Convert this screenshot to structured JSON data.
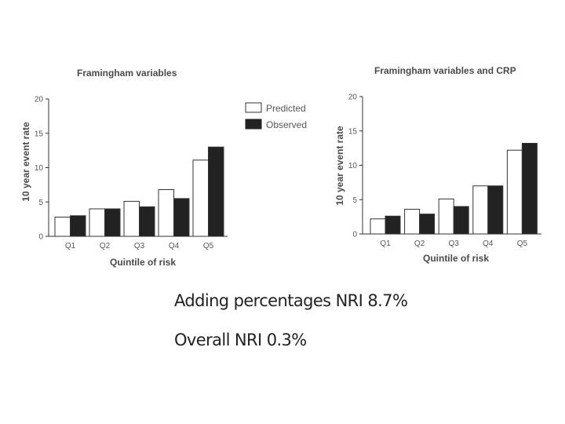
{
  "chart_data": [
    {
      "type": "bar",
      "title": "Framingham variables",
      "xlabel": "Quintile of risk",
      "ylabel": "10 year event rate",
      "categories": [
        "Q1",
        "Q2",
        "Q3",
        "Q4",
        "Q5"
      ],
      "ylim": [
        0,
        20
      ],
      "yticks": [
        0,
        5,
        10,
        15,
        20
      ],
      "grid": false,
      "legend": "top-right",
      "series": [
        {
          "name": "Predicted",
          "color": "#ffffff",
          "values": [
            2.8,
            4.0,
            5.1,
            6.8,
            11.1
          ]
        },
        {
          "name": "Observed",
          "color": "#222222",
          "values": [
            3.0,
            4.0,
            4.3,
            5.5,
            13.0
          ]
        }
      ]
    },
    {
      "type": "bar",
      "title": "Framingham variables and CRP",
      "xlabel": "Quintile of risk",
      "ylabel": "10 year event rate",
      "categories": [
        "Q1",
        "Q2",
        "Q3",
        "Q4",
        "Q5"
      ],
      "ylim": [
        0,
        20
      ],
      "yticks": [
        0,
        5,
        10,
        15,
        20
      ],
      "grid": false,
      "legend": "none",
      "series": [
        {
          "name": "Predicted",
          "color": "#ffffff",
          "values": [
            2.2,
            3.6,
            5.1,
            7.0,
            12.2
          ]
        },
        {
          "name": "Observed",
          "color": "#222222",
          "values": [
            2.6,
            2.9,
            4.0,
            7.0,
            13.2
          ]
        }
      ]
    }
  ],
  "notes": {
    "line1": "Adding percentages NRI 8.7%",
    "line2": "Overall NRI 0.3%"
  }
}
